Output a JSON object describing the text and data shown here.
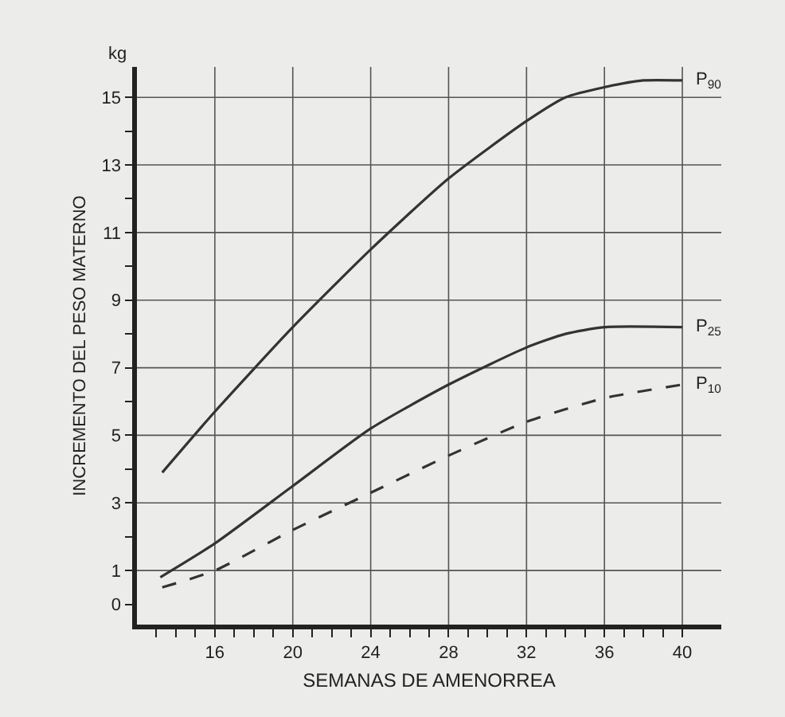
{
  "chart_data": {
    "type": "line",
    "xlabel": "SEMANAS DE AMENORREA",
    "ylabel": "INCREMENTO DEL PESO MATERNO",
    "annotations": [
      "kg"
    ],
    "xlim": [
      12,
      42
    ],
    "xticks": [
      {
        "value": 13,
        "label": null
      },
      {
        "value": 14,
        "label": null
      },
      {
        "value": 15,
        "label": null
      },
      16,
      {
        "value": 17,
        "label": null
      },
      {
        "value": 18,
        "label": null
      },
      {
        "value": 19,
        "label": null
      },
      20,
      {
        "value": 21,
        "label": null
      },
      {
        "value": 22,
        "label": null
      },
      {
        "value": 23,
        "label": null
      },
      24,
      {
        "value": 25,
        "label": null
      },
      {
        "value": 26,
        "label": null
      },
      {
        "value": 27,
        "label": null
      },
      28,
      {
        "value": 29,
        "label": null
      },
      {
        "value": 30,
        "label": null
      },
      {
        "value": 31,
        "label": null
      },
      32,
      {
        "value": 33,
        "label": null
      },
      {
        "value": 34,
        "label": null
      },
      {
        "value": 35,
        "label": null
      },
      36,
      {
        "value": 37,
        "label": null
      },
      {
        "value": 38,
        "label": null
      },
      {
        "value": 39,
        "label": null
      },
      40
    ],
    "ylim": [
      -0.6,
      15.9
    ],
    "yticks": [
      0,
      1,
      {
        "value": 2,
        "label": null
      },
      3,
      {
        "value": 4,
        "label": null
      },
      5,
      {
        "value": 6,
        "label": null
      },
      7,
      {
        "value": 8,
        "label": null
      },
      9,
      {
        "value": 10,
        "label": null
      },
      11,
      {
        "value": 12,
        "label": null
      },
      13,
      {
        "value": 14,
        "label": null
      },
      15
    ],
    "grid": true,
    "legend": false,
    "marker": "none",
    "series": [
      {
        "name": "P$_{90}$",
        "color": "#333333",
        "line_style": "solid",
        "x": [
          13.3,
          16,
          20,
          24,
          28,
          32,
          34,
          36,
          38,
          40
        ],
        "values": [
          3.9,
          5.7,
          8.2,
          10.5,
          12.6,
          14.3,
          15.0,
          15.3,
          15.5,
          15.5
        ]
      },
      {
        "name": "P$_{25}$",
        "color": "#333333",
        "line_style": "solid",
        "x": [
          13.2,
          16,
          20,
          24,
          28,
          32,
          34,
          36,
          40
        ],
        "values": [
          0.8,
          1.8,
          3.5,
          5.2,
          6.5,
          7.6,
          8.0,
          8.2,
          8.2
        ]
      },
      {
        "name": "P$_{10}$",
        "color": "#333333",
        "line_style": "dashed",
        "x": [
          13.3,
          16,
          20,
          24,
          28,
          32,
          36,
          40
        ],
        "values": [
          0.5,
          1.0,
          2.2,
          3.3,
          4.4,
          5.4,
          6.1,
          6.5
        ]
      }
    ]
  }
}
